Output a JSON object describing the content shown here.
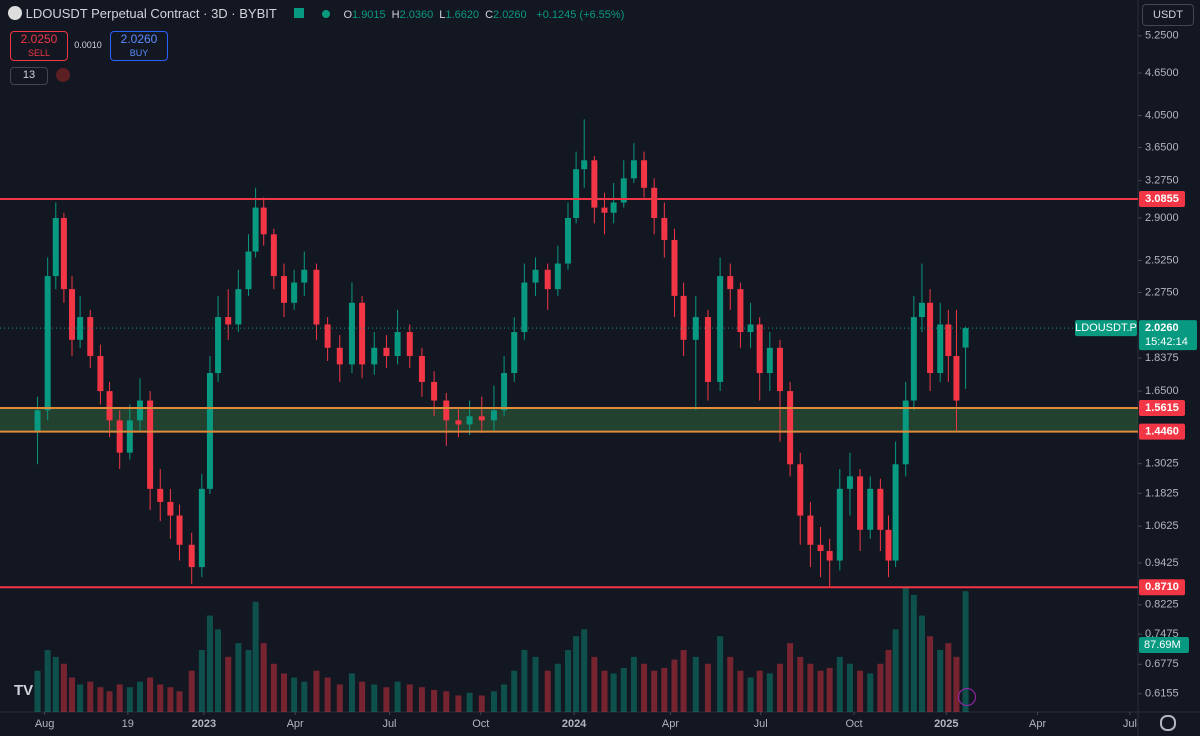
{
  "header": {
    "symbol": "LDOUSDT Perpetual Contract · 3D · BYBIT",
    "ohlc_labels": [
      "O",
      "H",
      "L",
      "C"
    ],
    "ohlc": [
      "1.9015",
      "2.0360",
      "1.6620",
      "2.0260"
    ],
    "change": "+0.1245 (+6.55%)",
    "sell_price": "2.0250",
    "sell": "SELL",
    "spread": "0.0010",
    "buy_price": "2.0260",
    "buy": "BUY",
    "indicators": "13",
    "currency": "USDT"
  },
  "chart_data": {
    "type": "candlestick",
    "log_scale": true,
    "up_color": "#089981",
    "down_color": "#f23645",
    "x": [
      37,
      47,
      55,
      63,
      71,
      79,
      89,
      99,
      108,
      118,
      128,
      138,
      148,
      158,
      168,
      177,
      189,
      199,
      207,
      215,
      225,
      235,
      245,
      252,
      260,
      270,
      280,
      290,
      300,
      312,
      323,
      335,
      347,
      357,
      369,
      381,
      392,
      404,
      416,
      428,
      440,
      452,
      463,
      475,
      487,
      497,
      507,
      517,
      528,
      540,
      550,
      560,
      568,
      576,
      586,
      596,
      605,
      615,
      625,
      635,
      645,
      655,
      665,
      674,
      686,
      698,
      710,
      720,
      730,
      740,
      749,
      759,
      769,
      779,
      789,
      799,
      809,
      818,
      828,
      838,
      848,
      858,
      868,
      876,
      883,
      893,
      901,
      909,
      917,
      927,
      935,
      943,
      952
    ],
    "open": [
      1.45,
      1.55,
      2.4,
      2.9,
      2.3,
      1.95,
      2.1,
      1.85,
      1.65,
      1.5,
      1.35,
      1.5,
      1.6,
      1.2,
      1.15,
      1.1,
      1.0,
      0.93,
      1.2,
      1.75,
      2.1,
      2.05,
      2.3,
      2.6,
      3.0,
      2.75,
      2.4,
      2.2,
      2.35,
      2.45,
      2.05,
      1.9,
      1.8,
      2.2,
      1.8,
      1.9,
      1.85,
      2.0,
      1.85,
      1.7,
      1.6,
      1.5,
      1.48,
      1.52,
      1.5,
      1.55,
      1.75,
      2.0,
      2.35,
      2.45,
      2.3,
      2.5,
      2.9,
      3.4,
      3.5,
      3.0,
      2.95,
      3.05,
      3.3,
      3.5,
      3.2,
      2.9,
      2.7,
      2.25,
      1.95,
      2.1,
      1.7,
      2.4,
      2.3,
      2.0,
      2.05,
      1.75,
      1.9,
      1.65,
      1.3,
      1.1,
      1.0,
      0.98,
      0.95,
      1.2,
      1.25,
      1.05,
      1.2,
      1.05,
      0.95,
      1.3,
      1.6,
      2.1,
      2.2,
      1.75,
      2.05,
      1.85,
      1.9015
    ],
    "high": [
      1.62,
      2.55,
      3.05,
      2.95,
      2.4,
      2.25,
      2.15,
      1.92,
      1.7,
      1.55,
      1.58,
      1.72,
      1.65,
      1.28,
      1.2,
      1.14,
      1.04,
      1.26,
      1.85,
      2.25,
      2.3,
      2.45,
      2.75,
      3.2,
      3.1,
      2.8,
      2.5,
      2.45,
      2.6,
      2.5,
      2.1,
      1.98,
      2.35,
      2.25,
      2.0,
      1.98,
      2.15,
      2.05,
      1.9,
      1.76,
      1.64,
      1.56,
      1.6,
      1.62,
      1.68,
      1.85,
      2.1,
      2.5,
      2.55,
      2.5,
      2.65,
      3.05,
      3.6,
      4.0,
      3.55,
      3.15,
      3.25,
      3.5,
      3.7,
      3.6,
      3.3,
      3.05,
      2.8,
      2.35,
      2.25,
      2.15,
      2.55,
      2.5,
      2.35,
      2.2,
      2.1,
      2.0,
      1.95,
      1.7,
      1.35,
      1.15,
      1.06,
      1.02,
      1.28,
      1.35,
      1.28,
      1.25,
      1.24,
      1.1,
      1.4,
      1.7,
      2.25,
      2.5,
      2.3,
      2.2,
      2.15,
      2.15,
      2.036
    ],
    "low": [
      1.3,
      1.5,
      2.3,
      2.2,
      1.85,
      1.9,
      1.78,
      1.58,
      1.42,
      1.28,
      1.32,
      1.45,
      1.12,
      1.08,
      1.02,
      0.95,
      0.88,
      0.9,
      1.18,
      1.7,
      1.95,
      2.0,
      2.25,
      2.55,
      2.65,
      2.3,
      2.1,
      2.15,
      2.25,
      1.95,
      1.82,
      1.7,
      1.75,
      1.72,
      1.74,
      1.78,
      1.8,
      1.78,
      1.62,
      1.52,
      1.38,
      1.42,
      1.43,
      1.44,
      1.45,
      1.52,
      1.7,
      1.95,
      2.25,
      2.15,
      2.25,
      2.45,
      2.85,
      3.2,
      2.85,
      2.75,
      2.85,
      3.0,
      3.25,
      3.1,
      2.75,
      2.55,
      2.1,
      1.85,
      1.55,
      1.6,
      1.65,
      2.15,
      1.9,
      1.9,
      1.6,
      1.65,
      1.4,
      1.25,
      1.0,
      0.93,
      0.9,
      0.87,
      0.92,
      1.1,
      0.98,
      1.02,
      0.98,
      0.9,
      0.93,
      1.25,
      1.55,
      2.0,
      1.65,
      1.7,
      1.7,
      1.45,
      1.662
    ],
    "close": [
      1.55,
      2.4,
      2.9,
      2.3,
      1.95,
      2.1,
      1.85,
      1.65,
      1.5,
      1.35,
      1.5,
      1.6,
      1.2,
      1.15,
      1.1,
      1.0,
      0.93,
      1.2,
      1.75,
      2.1,
      2.05,
      2.3,
      2.6,
      3.0,
      2.75,
      2.4,
      2.2,
      2.35,
      2.45,
      2.05,
      1.9,
      1.8,
      2.2,
      1.8,
      1.9,
      1.85,
      2.0,
      1.85,
      1.7,
      1.6,
      1.5,
      1.48,
      1.52,
      1.5,
      1.55,
      1.75,
      2.0,
      2.35,
      2.45,
      2.3,
      2.5,
      2.9,
      3.4,
      3.5,
      3.0,
      2.95,
      3.05,
      3.3,
      3.5,
      3.2,
      2.9,
      2.7,
      2.25,
      1.95,
      2.1,
      1.7,
      2.4,
      2.3,
      2.0,
      2.05,
      1.75,
      1.9,
      1.65,
      1.3,
      1.1,
      1.0,
      0.98,
      0.95,
      1.2,
      1.25,
      1.05,
      1.2,
      1.05,
      0.95,
      1.3,
      1.6,
      2.1,
      2.2,
      1.75,
      2.05,
      1.85,
      1.6,
      2.026
    ],
    "volume": {
      "values": [
        30,
        45,
        40,
        35,
        25,
        20,
        22,
        18,
        15,
        20,
        18,
        22,
        25,
        20,
        18,
        15,
        30,
        45,
        70,
        60,
        40,
        50,
        45,
        80,
        50,
        35,
        28,
        25,
        22,
        30,
        25,
        20,
        28,
        22,
        20,
        18,
        22,
        20,
        18,
        16,
        15,
        12,
        14,
        12,
        15,
        20,
        30,
        45,
        40,
        30,
        35,
        45,
        55,
        60,
        40,
        30,
        28,
        32,
        40,
        35,
        30,
        32,
        38,
        45,
        40,
        35,
        55,
        40,
        30,
        25,
        30,
        28,
        35,
        50,
        40,
        35,
        30,
        32,
        40,
        35,
        30,
        28,
        35,
        45,
        60,
        90,
        85,
        70,
        55,
        45,
        50,
        40,
        87.69
      ],
      "value_labels": [
        null,
        null,
        null,
        null,
        null,
        null,
        null,
        null,
        null,
        null,
        null,
        null,
        null,
        null,
        null,
        null,
        null,
        null,
        null,
        null,
        null,
        null,
        null,
        null,
        null,
        null,
        null,
        null,
        null,
        null,
        null,
        null,
        null,
        null,
        null,
        null,
        null,
        null,
        null,
        null,
        null,
        null,
        null,
        null,
        null,
        null,
        null,
        null,
        null,
        null,
        null,
        null,
        null,
        null,
        null,
        null,
        null,
        null,
        null,
        null,
        null,
        null,
        null,
        null,
        null,
        null,
        null,
        null,
        null,
        null,
        null,
        null,
        null,
        null,
        null,
        null,
        null,
        null,
        null,
        null,
        null,
        null,
        null,
        null,
        null,
        null,
        null,
        null,
        null,
        null,
        null,
        null,
        "87.69M"
      ]
    },
    "xlim": [
      0,
      1122
    ],
    "xticks": [
      {
        "value": 44,
        "label": "Aug"
      },
      {
        "value": 126,
        "label": "19"
      },
      {
        "value": 201,
        "label": "2023"
      },
      {
        "value": 291,
        "label": "Apr"
      },
      {
        "value": 384,
        "label": "Jul"
      },
      {
        "value": 474,
        "label": "Oct"
      },
      {
        "value": 566,
        "label": "2024"
      },
      {
        "value": 661,
        "label": "Apr"
      },
      {
        "value": 750,
        "label": "Jul"
      },
      {
        "value": 842,
        "label": "Oct"
      },
      {
        "value": 933,
        "label": "2025"
      },
      {
        "value": 1023,
        "label": "Apr"
      },
      {
        "value": 1114,
        "label": "Jul"
      }
    ],
    "ylim": [
      0.58,
      5.9
    ],
    "yticks": [
      {
        "value": 5.25,
        "label": "5.2500"
      },
      {
        "value": 4.65,
        "label": "4.6500"
      },
      {
        "value": 4.05,
        "label": "4.0500"
      },
      {
        "value": 3.65,
        "label": "3.6500"
      },
      {
        "value": 3.275,
        "label": "3.2750"
      },
      {
        "value": 2.9,
        "label": "2.9000"
      },
      {
        "value": 2.525,
        "label": "2.5250"
      },
      {
        "value": 2.275,
        "label": "2.2750"
      },
      {
        "value": 1.8375,
        "label": "1.8375"
      },
      {
        "value": 1.65,
        "label": "1.6500"
      },
      {
        "value": 1.3025,
        "label": "1.3025"
      },
      {
        "value": 1.1825,
        "label": "1.1825"
      },
      {
        "value": 1.0625,
        "label": "1.0625"
      },
      {
        "value": 0.9425,
        "label": "0.9425"
      },
      {
        "value": 0.8225,
        "label": "0.8225"
      },
      {
        "value": 0.7475,
        "label": "0.7475"
      },
      {
        "value": 0.6775,
        "label": "0.6775"
      },
      {
        "value": 0.6155,
        "label": "0.6155"
      }
    ],
    "hlines": [
      {
        "value": 3.0855,
        "label": "3.0855",
        "color": "#f23645"
      },
      {
        "value": 1.5615,
        "label": "1.5615",
        "color": "#e08a3c"
      },
      {
        "value": 1.446,
        "label": "1.4460",
        "color": "#e08a3c"
      },
      {
        "value": 0.871,
        "label": "0.8710",
        "color": "#f23645"
      }
    ],
    "zone_color": "rgba(76,175,80,0.28)",
    "last_price": {
      "value": 2.026,
      "label": "2.0260"
    },
    "symbol_label": "LDOUSDT.P",
    "countdown": "15:42:14"
  }
}
